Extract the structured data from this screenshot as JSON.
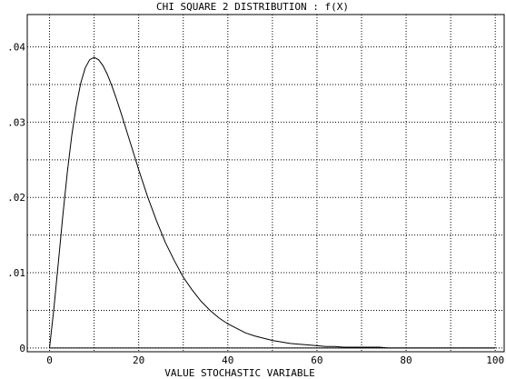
{
  "chart_data": {
    "type": "line",
    "title": "CHI SQUARE 2 DISTRIBUTION : f(X)",
    "xlabel": "VALUE STOCHASTIC VARIABLE",
    "ylabel": "",
    "xlim": [
      -5,
      102
    ],
    "ylim": [
      -0.0005,
      0.0443
    ],
    "x_ticks": [
      0,
      20,
      40,
      60,
      80,
      100
    ],
    "x_tick_labels": [
      "0",
      "20",
      "40",
      "60",
      "80",
      "100"
    ],
    "x_grid": [
      0,
      10,
      20,
      30,
      40,
      50,
      60,
      70,
      80,
      90,
      100
    ],
    "y_ticks": [
      0,
      0.01,
      0.02,
      0.03,
      0.04
    ],
    "y_tick_labels": [
      "0",
      ".01",
      ".02",
      ".03",
      ".04"
    ],
    "y_grid": [
      0,
      0.005,
      0.01,
      0.015,
      0.02,
      0.025,
      0.03,
      0.035,
      0.04
    ],
    "grid": true,
    "grid_style": "dotted",
    "series": [
      {
        "x": [
          0,
          1,
          2,
          3,
          4,
          5,
          6,
          7,
          8,
          9,
          10,
          11,
          12,
          13,
          14,
          15,
          16,
          17,
          18,
          19,
          20,
          22,
          24,
          26,
          28,
          30,
          32,
          34,
          36,
          38,
          40,
          42,
          44,
          46,
          48,
          50,
          52,
          54,
          56,
          58,
          60,
          62,
          64,
          66,
          68,
          70,
          72,
          74,
          76,
          78,
          80,
          85,
          90,
          95,
          100
        ],
        "y": [
          0,
          0.0054,
          0.0115,
          0.0177,
          0.0234,
          0.0283,
          0.0322,
          0.0352,
          0.0372,
          0.0383,
          0.0386,
          0.0383,
          0.0375,
          0.0363,
          0.0348,
          0.0331,
          0.0313,
          0.0294,
          0.0275,
          0.0256,
          0.0237,
          0.0201,
          0.0169,
          0.014,
          0.0116,
          0.0094,
          0.0077,
          0.0062,
          0.005,
          0.004,
          0.0032,
          0.0026,
          0.002,
          0.0016,
          0.0013,
          0.001,
          0.0008,
          0.0006,
          0.0005,
          0.0004,
          0.0003,
          0.0002,
          0.0002,
          0.0001,
          0.0001,
          0.0001,
          0.0001,
          0.0001,
          0.0,
          0.0,
          0.0,
          0.0,
          0.0,
          0.0,
          0.0
        ],
        "color": "#000000"
      }
    ],
    "baseline_y": 0
  }
}
